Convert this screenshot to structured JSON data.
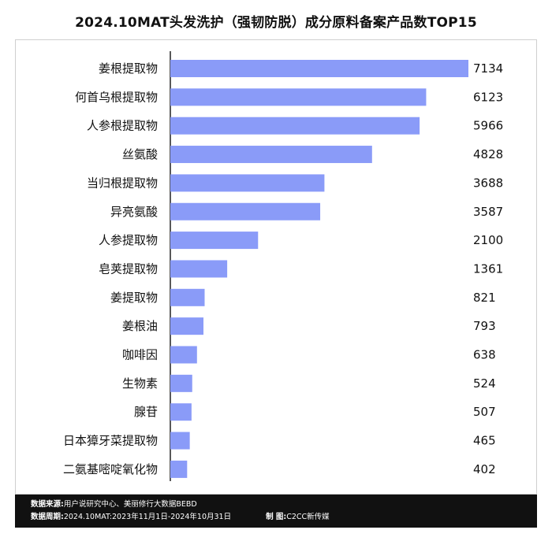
{
  "title": "2024.10MAT头发洗护（强韧防脱）成分原料备案产品数TOP15",
  "footer": {
    "source_label": "数据来源:",
    "source_value": "用户说研究中心、美丽修行大数据BEBD",
    "period_label": "数据周期:",
    "period_value": "2024.10MAT:2023年11月1日-2024年10月31日",
    "made_label": "制 图:",
    "made_value": "C2CC新传媒"
  },
  "colors": {
    "bar": "#8a9bf8",
    "axis": "#222222",
    "text": "#111111"
  },
  "chart_data": {
    "type": "bar",
    "orientation": "horizontal",
    "title": "2024.10MAT头发洗护（强韧防脱）成分原料备案产品数TOP15",
    "categories": [
      "姜根提取物",
      "何首乌根提取物",
      "人参根提取物",
      "丝氨酸",
      "当归根提取物",
      "异亮氨酸",
      "人参提取物",
      "皂荚提取物",
      "姜提取物",
      "姜根油",
      "咖啡因",
      "生物素",
      "腺苷",
      "日本獐牙菜提取物",
      "二氨基嘧啶氧化物"
    ],
    "values": [
      7134,
      6123,
      5966,
      4828,
      3688,
      3587,
      2100,
      1361,
      821,
      793,
      638,
      524,
      507,
      465,
      402
    ],
    "xlim": [
      0,
      7134
    ],
    "grid": false,
    "data_labels": true
  }
}
